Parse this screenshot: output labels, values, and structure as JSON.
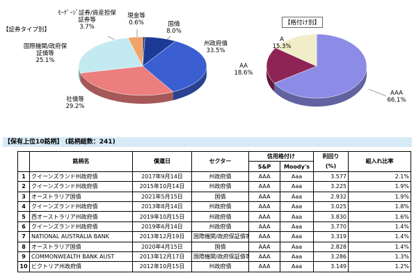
{
  "chart_data": [
    {
      "type": "pie",
      "title": "【証券タイプ別】",
      "categories": [
        "現金等",
        "国債",
        "州政府債",
        "社債等",
        "国際機関/政府保証債等",
        "ﾓｰｹﾞｰｼﾞ証券/資産担保証券等"
      ],
      "values": [
        0.6,
        8.0,
        33.5,
        29.2,
        25.1,
        3.7
      ],
      "value_labels": [
        "0.6%",
        "8.0%",
        "33.5%",
        "29.2%",
        "25.1%",
        "3.7%"
      ],
      "colors": [
        "#3a3a5a",
        "#1c3a96",
        "#3b5fd0",
        "#ec7e7e",
        "#c3eaf0",
        "#f2a368"
      ]
    },
    {
      "type": "pie",
      "title": "【格付け別】",
      "categories": [
        "AAA",
        "AA",
        "A"
      ],
      "values": [
        66.1,
        18.6,
        15.3
      ],
      "value_labels": [
        "66.1%",
        "18.6%",
        "15.3%"
      ],
      "colors": [
        "#8c8ce6",
        "#8e2456",
        "#f1edc9"
      ]
    }
  ],
  "table": {
    "title": "【保有上位10銘柄】",
    "subtitle": "(銘柄総数：241)",
    "headers": {
      "name": "銘柄名",
      "maturity": "償還日",
      "sector": "セクター",
      "rating": "信用格付け",
      "sp": "S&P",
      "moodys": "Moody's",
      "yield": "利回り",
      "yield_unit": "(%)",
      "weight": "組入れ比率"
    },
    "rows": [
      [
        "1",
        "クイーンズランド州政府債",
        "2017年9月14日",
        "州政府債",
        "AAA",
        "Aaa",
        "3.577",
        "2.1%"
      ],
      [
        "2",
        "クイーンズランド州政府債",
        "2015年10月14日",
        "州政府債",
        "AAA",
        "Aaa",
        "3.225",
        "1.9%"
      ],
      [
        "3",
        "オーストラリア国債",
        "2021年5月15日",
        "国債",
        "AAA",
        "Aaa",
        "2.932",
        "1.9%"
      ],
      [
        "4",
        "クイーンズランド州政府債",
        "2013年8月14日",
        "州政府債",
        "AAA",
        "Aaa",
        "3.025",
        "1.8%"
      ],
      [
        "5",
        "西オーストラリア州政府債",
        "2019年10月15日",
        "州政府債",
        "AAA",
        "Aaa",
        "3.830",
        "1.6%"
      ],
      [
        "6",
        "クイーンズランド州政府債",
        "2019年6月14日",
        "州政府債",
        "AAA",
        "Aaa",
        "3.770",
        "1.4%"
      ],
      [
        "7",
        "NATIONAL AUSTRALIA BANK",
        "2013年12月19日",
        "国際機関/政府保証債等",
        "AAA",
        "Aaa",
        "3.319",
        "1.4%"
      ],
      [
        "8",
        "オーストラリア国債",
        "2020年4月15日",
        "国債",
        "AAA",
        "Aaa",
        "2.828",
        "1.4%"
      ],
      [
        "9",
        "COMMONWEALTH BANK AUST",
        "2013年12月17日",
        "国際機関/政府保証債等",
        "AAA",
        "Aaa",
        "3.286",
        "1.3%"
      ],
      [
        "10",
        "ビクトリア州政府債",
        "2012年10月15日",
        "州政府債",
        "AAA",
        "Aaa",
        "3.149",
        "1.2%"
      ]
    ]
  }
}
